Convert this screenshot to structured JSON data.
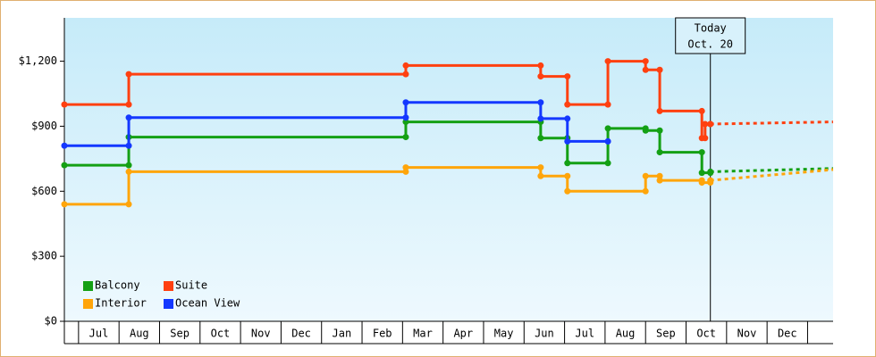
{
  "chart_data": {
    "type": "step",
    "categories": [
      "Jul",
      "Aug",
      "Sep",
      "Oct",
      "Nov",
      "Dec",
      "Jan",
      "Feb",
      "Mar",
      "Apr",
      "May",
      "Jun",
      "Jul",
      "Aug",
      "Sep",
      "Oct",
      "Nov",
      "Dec"
    ],
    "xlim": [
      -0.35,
      18.63
    ],
    "ylim": [
      0,
      1400
    ],
    "yticks": [
      {
        "value": 0,
        "label": "$0"
      },
      {
        "value": 300,
        "label": "$300"
      },
      {
        "value": 600,
        "label": "$600"
      },
      {
        "value": 900,
        "label": "$900"
      },
      {
        "value": 1200,
        "label": "$1,200"
      }
    ],
    "today": {
      "x": 15.6,
      "label": [
        "Today",
        "Oct. 20"
      ]
    },
    "projection_x": [
      15.6,
      18.63
    ],
    "legend": "lower left",
    "series": [
      {
        "name": "Balcony",
        "color": "#14a014",
        "x": [
          -0.35,
          1.24,
          8.08,
          11.41,
          12.07,
          13.07,
          14.0,
          14.35,
          15.39,
          15.6
        ],
        "values": [
          720,
          850,
          920,
          845,
          730,
          890,
          880,
          780,
          685,
          690
        ],
        "projection": [
          690,
          705
        ]
      },
      {
        "name": "Suite",
        "color": "#ff4010",
        "x": [
          -0.35,
          1.24,
          8.08,
          11.41,
          12.07,
          13.07,
          14.0,
          14.35,
          15.39,
          15.47,
          15.6
        ],
        "values": [
          1000,
          1140,
          1180,
          1130,
          1000,
          1200,
          1160,
          970,
          845,
          910,
          910
        ],
        "projection": [
          910,
          920
        ]
      },
      {
        "name": "Interior",
        "color": "#ffa50a",
        "x": [
          -0.35,
          1.24,
          8.08,
          11.41,
          12.07,
          14.0,
          14.35,
          15.39,
          15.6
        ],
        "values": [
          540,
          690,
          710,
          670,
          600,
          670,
          650,
          640,
          650
        ],
        "projection": [
          650,
          700
        ]
      },
      {
        "name": "Ocean View",
        "color": "#1438ff",
        "x": [
          -0.35,
          1.24,
          8.08,
          11.41,
          12.07,
          13.07
        ],
        "values": [
          810,
          940,
          1010,
          935,
          830,
          830
        ]
      }
    ]
  }
}
